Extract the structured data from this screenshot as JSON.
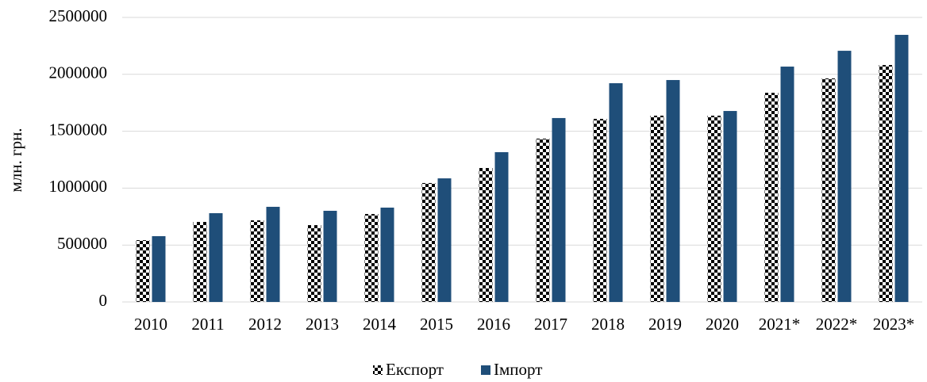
{
  "chart_data": {
    "type": "bar",
    "y_axis_label": "млн. грн.",
    "categories": [
      "2010",
      "2011",
      "2012",
      "2013",
      "2014",
      "2015",
      "2016",
      "2017",
      "2018",
      "2019",
      "2020",
      "2021*",
      "2022*",
      "2023*"
    ],
    "series": [
      {
        "name": "Експорт",
        "color": "#000000",
        "pattern": "checkered",
        "values": [
          543000,
          703000,
          717000,
          675000,
          773000,
          1045000,
          1177000,
          1435000,
          1609000,
          1637000,
          1637000,
          1838000,
          1964000,
          2082000
        ]
      },
      {
        "name": "Імпорт",
        "color": "#1f4e79",
        "values": [
          578000,
          780000,
          836000,
          801000,
          829000,
          1086000,
          1316000,
          1616000,
          1922000,
          1950000,
          1678000,
          2068000,
          2207000,
          2347000
        ]
      }
    ],
    "ylim": [
      0,
      2500000
    ],
    "yticks": [
      0,
      500000,
      1000000,
      1500000,
      2000000,
      2500000
    ],
    "grid": true,
    "legend": "bottom"
  }
}
